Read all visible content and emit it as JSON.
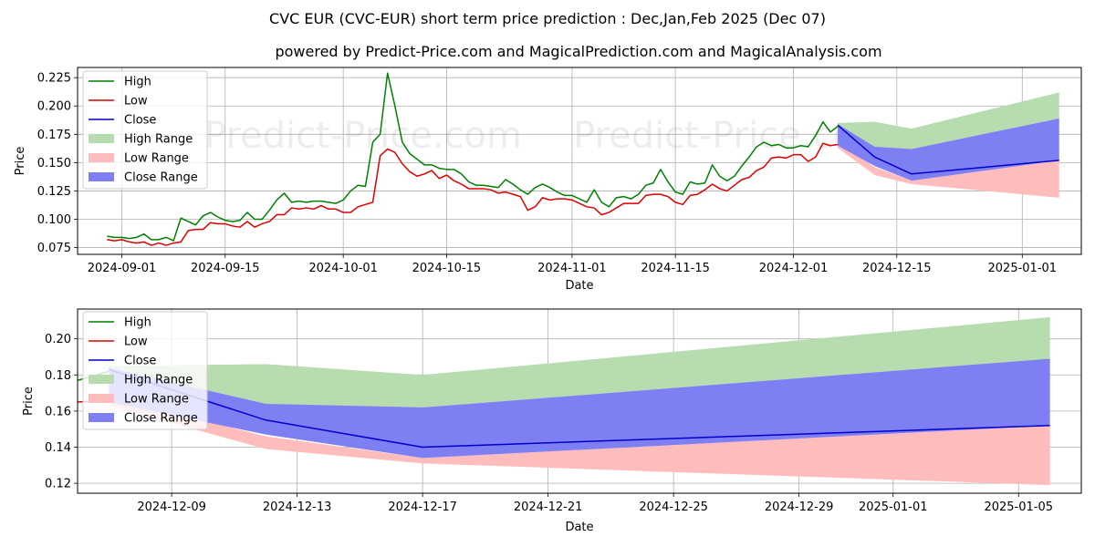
{
  "title": "CVC EUR (CVC-EUR) short term price prediction : Dec,Jan,Feb 2025 (Dec 07)",
  "subtitle": "powered by Predict-Price.com and MagicalPrediction.com and MagicalAnalysis.com",
  "watermark": "Predict-Price.com",
  "colors": {
    "high": "#008000",
    "low": "#dd0000",
    "close": "#0000cc",
    "high_range": "#b6dcb0",
    "low_range": "#ffbcbc",
    "close_range": "#7f7ff4",
    "grid": "#b0b0b0"
  },
  "chart_data": [
    {
      "type": "line",
      "name": "full-history",
      "xlabel": "Date",
      "ylabel": "Price",
      "xlim": [
        "2024-08-26",
        "2025-01-09"
      ],
      "ylim": [
        0.069,
        0.234
      ],
      "xticks": [
        "2024-09-01",
        "2024-09-15",
        "2024-10-01",
        "2024-10-15",
        "2024-11-01",
        "2024-11-15",
        "2024-12-01",
        "2024-12-15",
        "2025-01-01"
      ],
      "yticks": [
        0.075,
        0.1,
        0.125,
        0.15,
        0.175,
        0.2,
        0.225
      ],
      "ytick_labels": [
        "0.075",
        "0.100",
        "0.125",
        "0.150",
        "0.175",
        "0.200",
        "0.225"
      ],
      "legend": [
        "High",
        "Low",
        "Close",
        "High Range",
        "Low Range",
        "Close Range"
      ],
      "legend_position": "top-left",
      "history": {
        "start": "2024-08-30",
        "high": [
          0.085,
          0.084,
          0.084,
          0.083,
          0.084,
          0.087,
          0.082,
          0.082,
          0.084,
          0.081,
          0.101,
          0.098,
          0.095,
          0.103,
          0.106,
          0.102,
          0.099,
          0.098,
          0.099,
          0.106,
          0.1,
          0.1,
          0.108,
          0.117,
          0.123,
          0.115,
          0.116,
          0.115,
          0.116,
          0.116,
          0.115,
          0.114,
          0.117,
          0.125,
          0.13,
          0.129,
          0.168,
          0.175,
          0.229,
          0.2,
          0.168,
          0.158,
          0.153,
          0.148,
          0.148,
          0.145,
          0.144,
          0.144,
          0.14,
          0.133,
          0.13,
          0.13,
          0.129,
          0.128,
          0.135,
          0.131,
          0.126,
          0.122,
          0.128,
          0.131,
          0.128,
          0.124,
          0.121,
          0.121,
          0.118,
          0.115,
          0.126,
          0.115,
          0.111,
          0.119,
          0.12,
          0.118,
          0.122,
          0.13,
          0.132,
          0.144,
          0.133,
          0.124,
          0.122,
          0.133,
          0.131,
          0.132,
          0.148,
          0.138,
          0.134,
          0.138,
          0.147,
          0.155,
          0.164,
          0.168,
          0.165,
          0.166,
          0.163,
          0.163,
          0.165,
          0.164,
          0.174,
          0.186,
          0.177,
          0.182
        ],
        "low": [
          0.082,
          0.081,
          0.082,
          0.08,
          0.079,
          0.08,
          0.077,
          0.079,
          0.077,
          0.079,
          0.08,
          0.09,
          0.091,
          0.091,
          0.097,
          0.096,
          0.096,
          0.094,
          0.093,
          0.098,
          0.093,
          0.096,
          0.098,
          0.104,
          0.104,
          0.11,
          0.109,
          0.11,
          0.109,
          0.112,
          0.109,
          0.109,
          0.106,
          0.106,
          0.111,
          0.113,
          0.115,
          0.156,
          0.162,
          0.159,
          0.149,
          0.142,
          0.138,
          0.14,
          0.143,
          0.136,
          0.139,
          0.134,
          0.131,
          0.127,
          0.127,
          0.127,
          0.126,
          0.123,
          0.124,
          0.122,
          0.12,
          0.108,
          0.111,
          0.119,
          0.117,
          0.118,
          0.118,
          0.117,
          0.114,
          0.111,
          0.11,
          0.104,
          0.106,
          0.11,
          0.114,
          0.114,
          0.114,
          0.121,
          0.122,
          0.122,
          0.12,
          0.115,
          0.113,
          0.121,
          0.122,
          0.126,
          0.131,
          0.127,
          0.125,
          0.13,
          0.135,
          0.137,
          0.143,
          0.146,
          0.154,
          0.155,
          0.154,
          0.157,
          0.157,
          0.151,
          0.155,
          0.167,
          0.165,
          0.166
        ]
      },
      "forecast": {
        "dates": [
          "2024-12-07",
          "2024-12-12",
          "2024-12-17",
          "2025-01-06"
        ],
        "close": [
          0.183,
          0.155,
          0.14,
          0.152
        ],
        "high_range": {
          "upper": [
            0.185,
            0.186,
            0.18,
            0.212
          ],
          "lower": [
            0.18,
            0.163,
            0.162,
            0.189
          ]
        },
        "low_range": {
          "upper": [
            0.168,
            0.146,
            0.134,
            0.152
          ],
          "lower": [
            0.163,
            0.139,
            0.131,
            0.119
          ]
        },
        "close_range": {
          "upper": [
            0.184,
            0.164,
            0.162,
            0.189
          ],
          "lower": [
            0.165,
            0.147,
            0.134,
            0.152
          ]
        }
      }
    },
    {
      "type": "line",
      "name": "forecast-zoom",
      "xlabel": "Date",
      "ylabel": "Price",
      "xlim": [
        "2024-12-06",
        "2025-01-07"
      ],
      "ylim": [
        0.1145,
        0.2165
      ],
      "xticks": [
        "2024-12-09",
        "2024-12-13",
        "2024-12-17",
        "2024-12-21",
        "2024-12-25",
        "2024-12-29",
        "2025-01-01",
        "2025-01-05"
      ],
      "yticks": [
        0.12,
        0.14,
        0.16,
        0.18,
        0.2
      ],
      "ytick_labels": [
        "0.12",
        "0.14",
        "0.16",
        "0.18",
        "0.20"
      ],
      "legend": [
        "High",
        "Low",
        "Close",
        "High Range",
        "Low Range",
        "Close Range"
      ],
      "legend_position": "top-left"
    }
  ]
}
